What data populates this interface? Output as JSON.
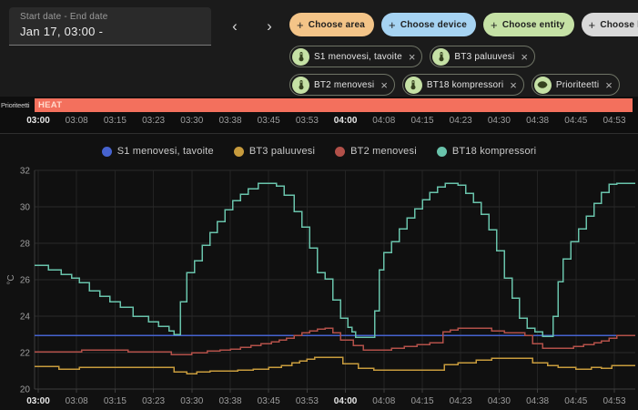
{
  "header": {
    "date_range": {
      "label": "Start date - End date",
      "value": "Jan 17, 03:00 -"
    },
    "prev_label": "‹",
    "next_label": "›",
    "choose_chips": [
      {
        "label": "Choose area",
        "bg": "#f3c488"
      },
      {
        "label": "Choose device",
        "bg": "#a6d3f2"
      },
      {
        "label": "Choose entity",
        "bg": "#c5e1a5"
      },
      {
        "label": "Choose label",
        "bg": "#d9d9d9"
      }
    ],
    "plus_symbol": "+",
    "entity_chips": [
      {
        "label": "S1 menovesi, tavoite",
        "icon": "thermometer"
      },
      {
        "label": "BT3 paluuvesi",
        "icon": "thermometer"
      },
      {
        "label": "BT2 menovesi",
        "icon": "thermometer"
      },
      {
        "label": "BT18 kompressori",
        "icon": "thermometer"
      },
      {
        "label": "Prioriteetti",
        "icon": "eye"
      }
    ],
    "entity_icon_bg": "#c5e1a5",
    "remove_symbol": "×"
  },
  "priority_timeline": {
    "label": "Prioriteetti",
    "segment_label": "HEAT",
    "segment_color": "#f3705d"
  },
  "chart_data": {
    "type": "line",
    "step": true,
    "title": "",
    "xlabel": "",
    "ylabel": "°C",
    "ylim": [
      20,
      32
    ],
    "yticks": [
      20,
      22,
      24,
      26,
      28,
      30,
      32
    ],
    "grid": true,
    "legend_position": "top-center",
    "x_unit": "minutes after 03:00",
    "xticks": [
      {
        "min": 0,
        "label": "03:00"
      },
      {
        "min": 7.5,
        "label": "03:08"
      },
      {
        "min": 15,
        "label": "03:15"
      },
      {
        "min": 22.5,
        "label": "03:23"
      },
      {
        "min": 30,
        "label": "03:30"
      },
      {
        "min": 37.5,
        "label": "03:38"
      },
      {
        "min": 45,
        "label": "03:45"
      },
      {
        "min": 52.5,
        "label": "03:53"
      },
      {
        "min": 60,
        "label": "04:00"
      },
      {
        "min": 67.5,
        "label": "04:08"
      },
      {
        "min": 75,
        "label": "04:15"
      },
      {
        "min": 82.5,
        "label": "04:23"
      },
      {
        "min": 90,
        "label": "04:30"
      },
      {
        "min": 97.5,
        "label": "04:38"
      },
      {
        "min": 105,
        "label": "04:45"
      },
      {
        "min": 112.5,
        "label": "04:53"
      }
    ],
    "series": [
      {
        "name": "S1 menovesi, tavoite",
        "color": "#4663cf",
        "points": [
          [
            0,
            22.95
          ],
          [
            116,
            22.95
          ]
        ]
      },
      {
        "name": "BT3 paluuvesi",
        "color": "#c79b3d",
        "points": [
          [
            0,
            21.25
          ],
          [
            4,
            21.1
          ],
          [
            8,
            21.2
          ],
          [
            26.5,
            20.95
          ],
          [
            29,
            20.85
          ],
          [
            31,
            20.95
          ],
          [
            33.5,
            21.0
          ],
          [
            39,
            21.05
          ],
          [
            42,
            21.1
          ],
          [
            45,
            21.2
          ],
          [
            47.5,
            21.3
          ],
          [
            49.5,
            21.45
          ],
          [
            51,
            21.55
          ],
          [
            52.5,
            21.65
          ],
          [
            54,
            21.75
          ],
          [
            59.5,
            21.4
          ],
          [
            62.5,
            21.15
          ],
          [
            65.5,
            21.05
          ],
          [
            79.3,
            21.35
          ],
          [
            82,
            21.45
          ],
          [
            85.5,
            21.6
          ],
          [
            88.5,
            21.7
          ],
          [
            96.5,
            21.45
          ],
          [
            99.5,
            21.3
          ],
          [
            101.5,
            21.2
          ],
          [
            105,
            21.1
          ],
          [
            108,
            21.2
          ],
          [
            110,
            21.15
          ],
          [
            112,
            21.3
          ],
          [
            116,
            21.3
          ]
        ]
      },
      {
        "name": "BT2 menovesi",
        "color": "#b25049",
        "points": [
          [
            0,
            22.05
          ],
          [
            8.5,
            22.15
          ],
          [
            17.5,
            22.05
          ],
          [
            26,
            21.9
          ],
          [
            30,
            22.0
          ],
          [
            33,
            22.1
          ],
          [
            35.5,
            22.15
          ],
          [
            37.5,
            22.2
          ],
          [
            39.5,
            22.3
          ],
          [
            41.5,
            22.4
          ],
          [
            43.5,
            22.5
          ],
          [
            45.5,
            22.6
          ],
          [
            47,
            22.7
          ],
          [
            48.5,
            22.8
          ],
          [
            50,
            22.95
          ],
          [
            51.5,
            23.1
          ],
          [
            53,
            23.2
          ],
          [
            54.5,
            23.3
          ],
          [
            56,
            23.35
          ],
          [
            57.5,
            23.1
          ],
          [
            59,
            22.7
          ],
          [
            61.5,
            22.4
          ],
          [
            63.5,
            22.15
          ],
          [
            69,
            22.25
          ],
          [
            71.5,
            22.35
          ],
          [
            74,
            22.45
          ],
          [
            76.5,
            22.55
          ],
          [
            79,
            23.15
          ],
          [
            80.5,
            23.25
          ],
          [
            82,
            23.35
          ],
          [
            88.5,
            23.2
          ],
          [
            91,
            23.1
          ],
          [
            95,
            22.95
          ],
          [
            96.5,
            22.5
          ],
          [
            98.5,
            22.25
          ],
          [
            104.5,
            22.35
          ],
          [
            106.5,
            22.45
          ],
          [
            108.5,
            22.55
          ],
          [
            110,
            22.65
          ],
          [
            111.5,
            22.8
          ],
          [
            113,
            22.95
          ],
          [
            116,
            22.95
          ]
        ]
      },
      {
        "name": "BT18 kompressori",
        "color": "#69c3ab",
        "points": [
          [
            0,
            26.8
          ],
          [
            2,
            26.55
          ],
          [
            4.5,
            26.3
          ],
          [
            6.5,
            26.1
          ],
          [
            8,
            25.85
          ],
          [
            10,
            25.4
          ],
          [
            12,
            25.1
          ],
          [
            14,
            24.8
          ],
          [
            16,
            24.5
          ],
          [
            18.5,
            24.0
          ],
          [
            21.5,
            23.7
          ],
          [
            23.5,
            23.45
          ],
          [
            25.5,
            23.2
          ],
          [
            26.5,
            23.0
          ],
          [
            27.8,
            24.8
          ],
          [
            29,
            26.4
          ],
          [
            30.5,
            27.05
          ],
          [
            32,
            27.9
          ],
          [
            33.5,
            28.6
          ],
          [
            35,
            29.2
          ],
          [
            36.5,
            29.85
          ],
          [
            38,
            30.35
          ],
          [
            39.5,
            30.7
          ],
          [
            41,
            31.0
          ],
          [
            43,
            31.3
          ],
          [
            46.5,
            31.15
          ],
          [
            48,
            30.65
          ],
          [
            50,
            29.75
          ],
          [
            51.5,
            28.9
          ],
          [
            53,
            27.75
          ],
          [
            54.5,
            26.4
          ],
          [
            56,
            26.05
          ],
          [
            57.5,
            24.9
          ],
          [
            59,
            23.9
          ],
          [
            60.5,
            23.4
          ],
          [
            61.3,
            23.15
          ],
          [
            62,
            22.85
          ],
          [
            65.7,
            24.3
          ],
          [
            66.6,
            26.55
          ],
          [
            67.5,
            27.5
          ],
          [
            69,
            28.1
          ],
          [
            70.5,
            28.8
          ],
          [
            72,
            29.4
          ],
          [
            73.5,
            29.9
          ],
          [
            75,
            30.4
          ],
          [
            76.5,
            30.8
          ],
          [
            78,
            31.1
          ],
          [
            79.5,
            31.3
          ],
          [
            82,
            31.2
          ],
          [
            83.5,
            30.75
          ],
          [
            85,
            30.25
          ],
          [
            86.5,
            29.6
          ],
          [
            88,
            28.75
          ],
          [
            89.5,
            27.6
          ],
          [
            91,
            26.1
          ],
          [
            92.5,
            25.0
          ],
          [
            94,
            23.9
          ],
          [
            95.5,
            23.35
          ],
          [
            97,
            23.15
          ],
          [
            98.5,
            22.9
          ],
          [
            100.5,
            24.0
          ],
          [
            101.5,
            25.9
          ],
          [
            102.5,
            27.15
          ],
          [
            104,
            28.1
          ],
          [
            105.5,
            28.8
          ],
          [
            107,
            29.5
          ],
          [
            108.5,
            30.2
          ],
          [
            110,
            30.8
          ],
          [
            111.5,
            31.25
          ],
          [
            113,
            31.3
          ],
          [
            116,
            31.3
          ]
        ]
      }
    ]
  }
}
